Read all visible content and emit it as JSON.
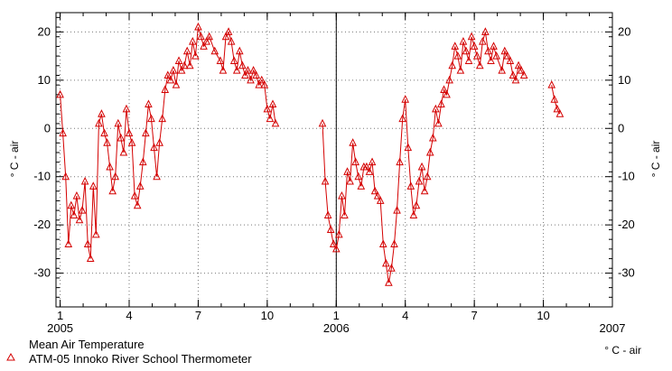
{
  "chart_data": {
    "type": "scatter",
    "title": "",
    "ylabel": "° C - air",
    "ylabel_right": "° C - air",
    "ylim": [
      -37,
      24
    ],
    "y_ticks": [
      20,
      10,
      0,
      -10,
      -20,
      -30
    ],
    "x_tick_labels": [
      {
        "t": 2005.0,
        "label": "1"
      },
      {
        "t": 2005.25,
        "label": "4"
      },
      {
        "t": 2005.5,
        "label": "7"
      },
      {
        "t": 2005.75,
        "label": "10"
      },
      {
        "t": 2006.0,
        "label": "1"
      },
      {
        "t": 2006.25,
        "label": "4"
      },
      {
        "t": 2006.5,
        "label": "7"
      },
      {
        "t": 2006.75,
        "label": "10"
      }
    ],
    "year_labels": [
      {
        "t": 2005.0,
        "label": "2005"
      },
      {
        "t": 2006.0,
        "label": "2006"
      },
      {
        "t": 2007.0,
        "label": "2007"
      }
    ],
    "xlim_years": [
      2004.985,
      2007.0
    ],
    "grid": "dotted",
    "vertical_markers": [
      2006.0
    ],
    "marker_color": "#d40000",
    "legend": {
      "position": "bottom-left",
      "marker": "triangle",
      "lines": [
        "Mean Air Temperature",
        "ATM-05 Innoko River School Thermometer"
      ]
    },
    "unit_label": "° C - air",
    "series": [
      {
        "name": "Mean Air Temperature",
        "points": [
          [
            2005.0,
            7
          ],
          [
            2005.01,
            -1
          ],
          [
            2005.02,
            -10
          ],
          [
            2005.03,
            -24
          ],
          [
            2005.04,
            -16
          ],
          [
            2005.05,
            -18
          ],
          [
            2005.06,
            -14
          ],
          [
            2005.07,
            -19
          ],
          [
            2005.08,
            -17
          ],
          [
            2005.09,
            -11
          ],
          [
            2005.1,
            -24
          ],
          [
            2005.11,
            -27
          ],
          [
            2005.12,
            -12
          ],
          [
            2005.13,
            -22
          ],
          [
            2005.14,
            1
          ],
          [
            2005.15,
            3
          ],
          [
            2005.16,
            -1
          ],
          [
            2005.17,
            -3
          ],
          [
            2005.18,
            -8
          ],
          [
            2005.19,
            -13
          ],
          [
            2005.2,
            -10
          ],
          [
            2005.21,
            1
          ],
          [
            2005.22,
            -2
          ],
          [
            2005.23,
            -5
          ],
          [
            2005.24,
            4
          ],
          [
            2005.25,
            -1
          ],
          [
            2005.26,
            -3
          ],
          [
            2005.27,
            -14
          ],
          [
            2005.28,
            -16
          ],
          [
            2005.29,
            -12
          ],
          [
            2005.3,
            -7
          ],
          [
            2005.31,
            -1
          ],
          [
            2005.32,
            5
          ],
          [
            2005.33,
            2
          ],
          [
            2005.34,
            -4
          ],
          [
            2005.35,
            -10
          ],
          [
            2005.36,
            -3
          ],
          [
            2005.37,
            2
          ],
          [
            2005.38,
            8
          ],
          [
            2005.39,
            11
          ],
          [
            2005.4,
            10
          ],
          [
            2005.41,
            12
          ],
          [
            2005.42,
            9
          ],
          [
            2005.43,
            14
          ],
          [
            2005.44,
            12
          ],
          [
            2005.45,
            13
          ],
          [
            2005.46,
            16
          ],
          [
            2005.47,
            13
          ],
          [
            2005.48,
            18
          ],
          [
            2005.49,
            15
          ],
          [
            2005.5,
            21
          ],
          [
            2005.51,
            19
          ],
          [
            2005.52,
            17
          ],
          [
            2005.53,
            18
          ],
          [
            2005.54,
            19
          ],
          [
            2005.56,
            16
          ],
          [
            2005.58,
            14
          ],
          [
            2005.59,
            12
          ],
          [
            2005.6,
            19
          ],
          [
            2005.61,
            20
          ],
          [
            2005.62,
            18
          ],
          [
            2005.63,
            14
          ],
          [
            2005.64,
            12
          ],
          [
            2005.65,
            16
          ],
          [
            2005.66,
            13
          ],
          [
            2005.67,
            11
          ],
          [
            2005.68,
            12
          ],
          [
            2005.69,
            10
          ],
          [
            2005.7,
            12
          ],
          [
            2005.71,
            11
          ],
          [
            2005.72,
            9
          ],
          [
            2005.73,
            10
          ],
          [
            2005.74,
            9
          ],
          [
            2005.75,
            4
          ],
          [
            2005.76,
            2
          ],
          [
            2005.77,
            5
          ],
          [
            2005.78,
            1
          ],
          [
            2005.95,
            1
          ],
          [
            2005.96,
            -11
          ],
          [
            2005.97,
            -18
          ],
          [
            2005.98,
            -21
          ],
          [
            2005.99,
            -24
          ],
          [
            2006.0,
            -25
          ],
          [
            2006.01,
            -22
          ],
          [
            2006.02,
            -14
          ],
          [
            2006.03,
            -18
          ],
          [
            2006.04,
            -9
          ],
          [
            2006.05,
            -11
          ],
          [
            2006.06,
            -3
          ],
          [
            2006.07,
            -7
          ],
          [
            2006.08,
            -10
          ],
          [
            2006.09,
            -12
          ],
          [
            2006.1,
            -8
          ],
          [
            2006.11,
            -8
          ],
          [
            2006.12,
            -9
          ],
          [
            2006.13,
            -7
          ],
          [
            2006.14,
            -13
          ],
          [
            2006.15,
            -14
          ],
          [
            2006.16,
            -15
          ],
          [
            2006.17,
            -24
          ],
          [
            2006.18,
            -28
          ],
          [
            2006.19,
            -32
          ],
          [
            2006.2,
            -29
          ],
          [
            2006.21,
            -24
          ],
          [
            2006.22,
            -17
          ],
          [
            2006.23,
            -7
          ],
          [
            2006.24,
            2
          ],
          [
            2006.25,
            6
          ],
          [
            2006.26,
            -4
          ],
          [
            2006.27,
            -12
          ],
          [
            2006.28,
            -18
          ],
          [
            2006.29,
            -16
          ],
          [
            2006.3,
            -11
          ],
          [
            2006.31,
            -8
          ],
          [
            2006.32,
            -13
          ],
          [
            2006.33,
            -10
          ],
          [
            2006.34,
            -5
          ],
          [
            2006.35,
            -2
          ],
          [
            2006.36,
            4
          ],
          [
            2006.37,
            1
          ],
          [
            2006.38,
            5
          ],
          [
            2006.39,
            8
          ],
          [
            2006.4,
            7
          ],
          [
            2006.41,
            10
          ],
          [
            2006.42,
            13
          ],
          [
            2006.43,
            17
          ],
          [
            2006.44,
            15
          ],
          [
            2006.45,
            12
          ],
          [
            2006.46,
            18
          ],
          [
            2006.47,
            16
          ],
          [
            2006.48,
            14
          ],
          [
            2006.49,
            19
          ],
          [
            2006.5,
            17
          ],
          [
            2006.51,
            15
          ],
          [
            2006.52,
            13
          ],
          [
            2006.53,
            18
          ],
          [
            2006.54,
            20
          ],
          [
            2006.55,
            16
          ],
          [
            2006.56,
            14
          ],
          [
            2006.57,
            17
          ],
          [
            2006.58,
            15
          ],
          [
            2006.6,
            12
          ],
          [
            2006.61,
            16
          ],
          [
            2006.62,
            15
          ],
          [
            2006.63,
            14
          ],
          [
            2006.64,
            11
          ],
          [
            2006.65,
            10
          ],
          [
            2006.66,
            13
          ],
          [
            2006.67,
            12
          ],
          [
            2006.68,
            11
          ],
          [
            2006.78,
            9
          ],
          [
            2006.79,
            6
          ],
          [
            2006.8,
            4
          ],
          [
            2006.81,
            3
          ]
        ]
      }
    ]
  }
}
